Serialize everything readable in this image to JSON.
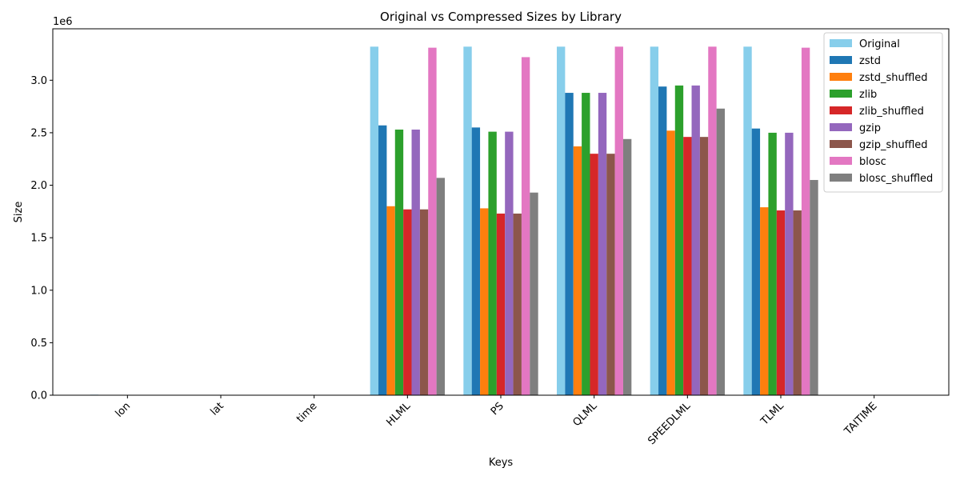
{
  "chart_data": {
    "type": "bar",
    "title": "Original vs Compressed Sizes by Library",
    "xlabel": "Keys",
    "ylabel": "Size",
    "y_offset_label": "1e6",
    "ylim": [
      0,
      3.49
    ],
    "y_ticks": [
      0.0,
      0.5,
      1.0,
      1.5,
      2.0,
      2.5,
      3.0
    ],
    "y_tick_labels": [
      "0.0",
      "0.5",
      "1.0",
      "1.5",
      "2.0",
      "2.5",
      "3.0"
    ],
    "categories": [
      "lon",
      "lat",
      "time",
      "HLML",
      "PS",
      "QLML",
      "SPEEDLML",
      "TLML",
      "TAITIME"
    ],
    "legend_position": "top-right",
    "grid": false,
    "series": [
      {
        "name": "Original",
        "color": "#87ceeb",
        "values": [
          0.0052,
          0.0029,
          3e-05,
          3.32,
          3.32,
          3.32,
          3.32,
          3.32,
          3e-05
        ]
      },
      {
        "name": "zstd",
        "color": "#1f77b4",
        "values": [
          0.0001,
          0.0001,
          3e-05,
          2.57,
          2.55,
          2.88,
          2.94,
          2.54,
          3e-05
        ]
      },
      {
        "name": "zstd_shuffled",
        "color": "#ff7f0e",
        "values": [
          0.0001,
          0.0001,
          3e-05,
          1.8,
          1.78,
          2.37,
          2.52,
          1.79,
          3e-05
        ]
      },
      {
        "name": "zlib",
        "color": "#2ca02c",
        "values": [
          0.0001,
          0.0001,
          3e-05,
          2.53,
          2.51,
          2.88,
          2.95,
          2.5,
          3e-05
        ]
      },
      {
        "name": "zlib_shuffled",
        "color": "#d62728",
        "values": [
          0.0001,
          0.0001,
          3e-05,
          1.77,
          1.73,
          2.3,
          2.46,
          1.76,
          3e-05
        ]
      },
      {
        "name": "gzip",
        "color": "#9467bd",
        "values": [
          0.0001,
          0.0001,
          3e-05,
          2.53,
          2.51,
          2.88,
          2.95,
          2.5,
          3e-05
        ]
      },
      {
        "name": "gzip_shuffled",
        "color": "#8c564b",
        "values": [
          0.0001,
          0.0001,
          3e-05,
          1.77,
          1.73,
          2.3,
          2.46,
          1.76,
          3e-05
        ]
      },
      {
        "name": "blosc",
        "color": "#e377c2",
        "values": [
          0.0001,
          0.0001,
          3e-05,
          3.31,
          3.22,
          3.32,
          3.32,
          3.31,
          3e-05
        ]
      },
      {
        "name": "blosc_shuffled",
        "color": "#7f7f7f",
        "values": [
          0.0001,
          0.0001,
          3e-05,
          2.07,
          1.93,
          2.44,
          2.73,
          2.05,
          3e-05
        ]
      }
    ]
  }
}
